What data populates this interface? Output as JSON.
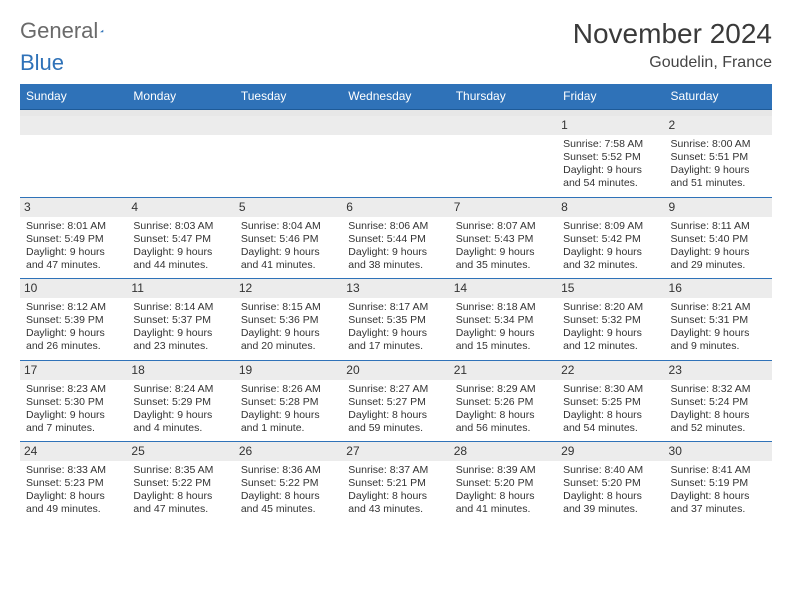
{
  "logo": {
    "part1": "General",
    "part2": "Blue"
  },
  "header": {
    "title": "November 2024",
    "location": "Goudelin, France"
  },
  "calendar": {
    "dayNames": [
      "Sunday",
      "Monday",
      "Tuesday",
      "Wednesday",
      "Thursday",
      "Friday",
      "Saturday"
    ],
    "colors": {
      "headerBg": "#2f72b8",
      "headerText": "#ffffff",
      "dayNumBg": "#ececec",
      "rowBorder": "#2f72b8",
      "spacerBg": "#e7e7e7",
      "textColor": "#333333"
    },
    "weeks": [
      [
        null,
        null,
        null,
        null,
        null,
        {
          "n": "1",
          "sr": "Sunrise: 7:58 AM",
          "ss": "Sunset: 5:52 PM",
          "d1": "Daylight: 9 hours",
          "d2": "and 54 minutes."
        },
        {
          "n": "2",
          "sr": "Sunrise: 8:00 AM",
          "ss": "Sunset: 5:51 PM",
          "d1": "Daylight: 9 hours",
          "d2": "and 51 minutes."
        }
      ],
      [
        {
          "n": "3",
          "sr": "Sunrise: 8:01 AM",
          "ss": "Sunset: 5:49 PM",
          "d1": "Daylight: 9 hours",
          "d2": "and 47 minutes."
        },
        {
          "n": "4",
          "sr": "Sunrise: 8:03 AM",
          "ss": "Sunset: 5:47 PM",
          "d1": "Daylight: 9 hours",
          "d2": "and 44 minutes."
        },
        {
          "n": "5",
          "sr": "Sunrise: 8:04 AM",
          "ss": "Sunset: 5:46 PM",
          "d1": "Daylight: 9 hours",
          "d2": "and 41 minutes."
        },
        {
          "n": "6",
          "sr": "Sunrise: 8:06 AM",
          "ss": "Sunset: 5:44 PM",
          "d1": "Daylight: 9 hours",
          "d2": "and 38 minutes."
        },
        {
          "n": "7",
          "sr": "Sunrise: 8:07 AM",
          "ss": "Sunset: 5:43 PM",
          "d1": "Daylight: 9 hours",
          "d2": "and 35 minutes."
        },
        {
          "n": "8",
          "sr": "Sunrise: 8:09 AM",
          "ss": "Sunset: 5:42 PM",
          "d1": "Daylight: 9 hours",
          "d2": "and 32 minutes."
        },
        {
          "n": "9",
          "sr": "Sunrise: 8:11 AM",
          "ss": "Sunset: 5:40 PM",
          "d1": "Daylight: 9 hours",
          "d2": "and 29 minutes."
        }
      ],
      [
        {
          "n": "10",
          "sr": "Sunrise: 8:12 AM",
          "ss": "Sunset: 5:39 PM",
          "d1": "Daylight: 9 hours",
          "d2": "and 26 minutes."
        },
        {
          "n": "11",
          "sr": "Sunrise: 8:14 AM",
          "ss": "Sunset: 5:37 PM",
          "d1": "Daylight: 9 hours",
          "d2": "and 23 minutes."
        },
        {
          "n": "12",
          "sr": "Sunrise: 8:15 AM",
          "ss": "Sunset: 5:36 PM",
          "d1": "Daylight: 9 hours",
          "d2": "and 20 minutes."
        },
        {
          "n": "13",
          "sr": "Sunrise: 8:17 AM",
          "ss": "Sunset: 5:35 PM",
          "d1": "Daylight: 9 hours",
          "d2": "and 17 minutes."
        },
        {
          "n": "14",
          "sr": "Sunrise: 8:18 AM",
          "ss": "Sunset: 5:34 PM",
          "d1": "Daylight: 9 hours",
          "d2": "and 15 minutes."
        },
        {
          "n": "15",
          "sr": "Sunrise: 8:20 AM",
          "ss": "Sunset: 5:32 PM",
          "d1": "Daylight: 9 hours",
          "d2": "and 12 minutes."
        },
        {
          "n": "16",
          "sr": "Sunrise: 8:21 AM",
          "ss": "Sunset: 5:31 PM",
          "d1": "Daylight: 9 hours",
          "d2": "and 9 minutes."
        }
      ],
      [
        {
          "n": "17",
          "sr": "Sunrise: 8:23 AM",
          "ss": "Sunset: 5:30 PM",
          "d1": "Daylight: 9 hours",
          "d2": "and 7 minutes."
        },
        {
          "n": "18",
          "sr": "Sunrise: 8:24 AM",
          "ss": "Sunset: 5:29 PM",
          "d1": "Daylight: 9 hours",
          "d2": "and 4 minutes."
        },
        {
          "n": "19",
          "sr": "Sunrise: 8:26 AM",
          "ss": "Sunset: 5:28 PM",
          "d1": "Daylight: 9 hours",
          "d2": "and 1 minute."
        },
        {
          "n": "20",
          "sr": "Sunrise: 8:27 AM",
          "ss": "Sunset: 5:27 PM",
          "d1": "Daylight: 8 hours",
          "d2": "and 59 minutes."
        },
        {
          "n": "21",
          "sr": "Sunrise: 8:29 AM",
          "ss": "Sunset: 5:26 PM",
          "d1": "Daylight: 8 hours",
          "d2": "and 56 minutes."
        },
        {
          "n": "22",
          "sr": "Sunrise: 8:30 AM",
          "ss": "Sunset: 5:25 PM",
          "d1": "Daylight: 8 hours",
          "d2": "and 54 minutes."
        },
        {
          "n": "23",
          "sr": "Sunrise: 8:32 AM",
          "ss": "Sunset: 5:24 PM",
          "d1": "Daylight: 8 hours",
          "d2": "and 52 minutes."
        }
      ],
      [
        {
          "n": "24",
          "sr": "Sunrise: 8:33 AM",
          "ss": "Sunset: 5:23 PM",
          "d1": "Daylight: 8 hours",
          "d2": "and 49 minutes."
        },
        {
          "n": "25",
          "sr": "Sunrise: 8:35 AM",
          "ss": "Sunset: 5:22 PM",
          "d1": "Daylight: 8 hours",
          "d2": "and 47 minutes."
        },
        {
          "n": "26",
          "sr": "Sunrise: 8:36 AM",
          "ss": "Sunset: 5:22 PM",
          "d1": "Daylight: 8 hours",
          "d2": "and 45 minutes."
        },
        {
          "n": "27",
          "sr": "Sunrise: 8:37 AM",
          "ss": "Sunset: 5:21 PM",
          "d1": "Daylight: 8 hours",
          "d2": "and 43 minutes."
        },
        {
          "n": "28",
          "sr": "Sunrise: 8:39 AM",
          "ss": "Sunset: 5:20 PM",
          "d1": "Daylight: 8 hours",
          "d2": "and 41 minutes."
        },
        {
          "n": "29",
          "sr": "Sunrise: 8:40 AM",
          "ss": "Sunset: 5:20 PM",
          "d1": "Daylight: 8 hours",
          "d2": "and 39 minutes."
        },
        {
          "n": "30",
          "sr": "Sunrise: 8:41 AM",
          "ss": "Sunset: 5:19 PM",
          "d1": "Daylight: 8 hours",
          "d2": "and 37 minutes."
        }
      ]
    ]
  }
}
